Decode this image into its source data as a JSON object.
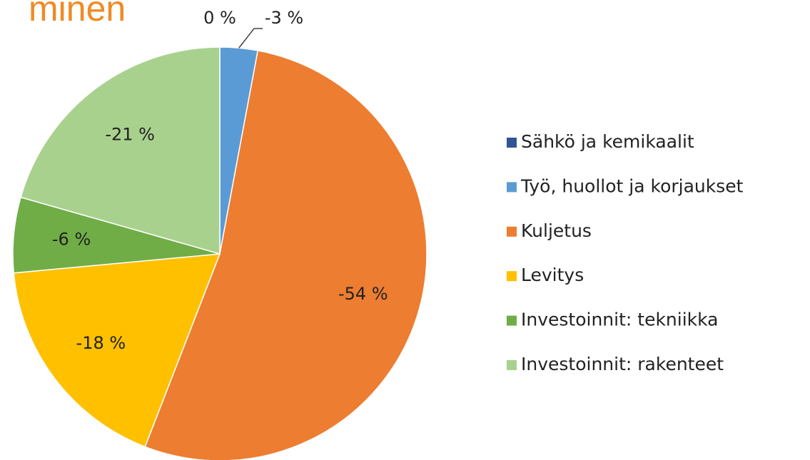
{
  "chart_data": {
    "type": "pie",
    "title": "minen",
    "categories": [
      "Sähkö ja kemikaalit",
      "Työ, huollot ja korjaukset",
      "Kuljetus",
      "Levitys",
      "Investoinnit: tekniikka",
      "Investoinnit: rakenteet"
    ],
    "values": [
      0,
      -3,
      -54,
      -18,
      -6,
      -21
    ],
    "value_labels": [
      "0 %",
      "-3 %",
      "-54 %",
      "-18 %",
      "-6 %",
      "-21 %"
    ],
    "colors": [
      "#2f5597",
      "#5b9bd5",
      "#ed7d31",
      "#ffc000",
      "#70ad47",
      "#a9d18e"
    ],
    "legend": "right"
  }
}
